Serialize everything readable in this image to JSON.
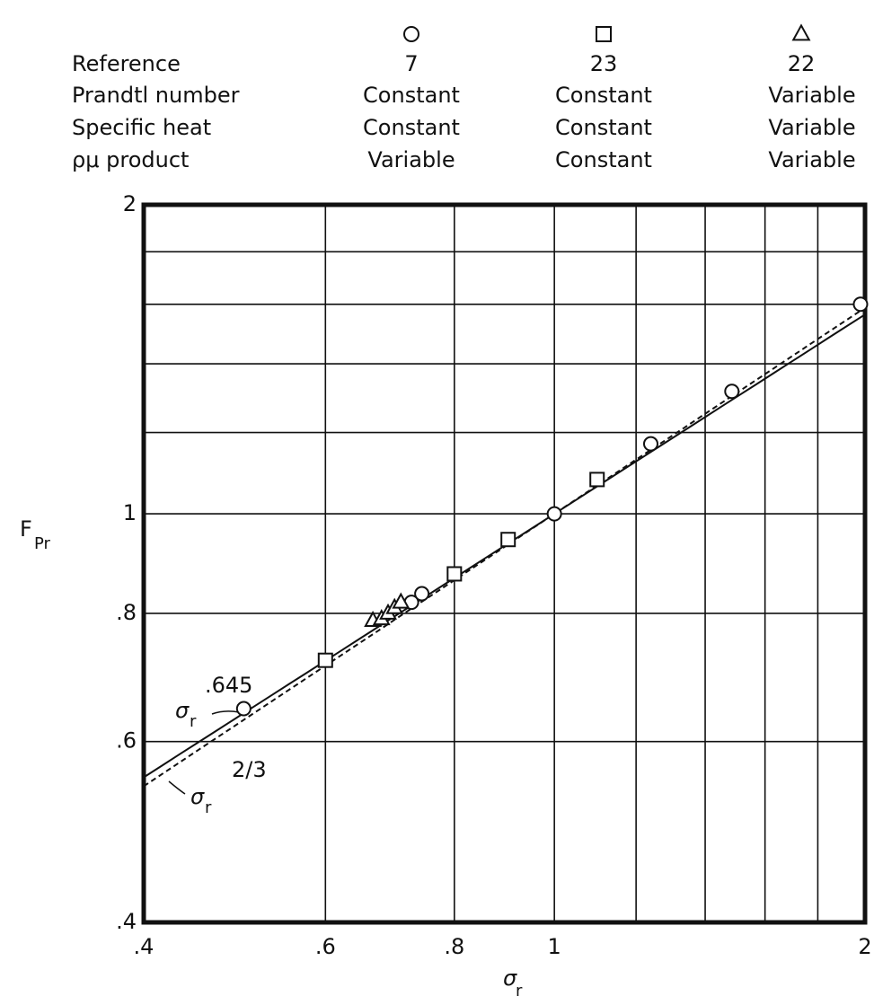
{
  "chart_data": {
    "type": "scatter",
    "legend_rows": [
      "Reference",
      "Prandtl number",
      "Specific heat",
      "ρμ product"
    ],
    "series": [
      {
        "name": "7",
        "marker": "circle",
        "attributes": [
          "Constant",
          "Constant",
          "Variable"
        ],
        "x": [
          0.5,
          0.727,
          0.744,
          1.0,
          1.24,
          1.486,
          1.98
        ],
        "values": [
          0.646,
          0.82,
          0.836,
          1.0,
          1.17,
          1.316,
          1.6
        ]
      },
      {
        "name": "23",
        "marker": "square",
        "attributes": [
          "Constant",
          "Constant",
          "Constant"
        ],
        "x": [
          0.6,
          0.8,
          0.902,
          1.1
        ],
        "values": [
          0.72,
          0.874,
          0.944,
          1.08
        ]
      },
      {
        "name": "22",
        "marker": "triangle",
        "attributes": [
          "Variable",
          "Variable",
          "Variable"
        ],
        "x": [
          0.667,
          0.68,
          0.69,
          0.7,
          0.71
        ],
        "values": [
          0.787,
          0.79,
          0.8,
          0.81,
          0.82
        ]
      }
    ],
    "curves": [
      {
        "exponent": 0.645,
        "style": "solid",
        "symbol": "σ",
        "sub": "r",
        "label": ".645"
      },
      {
        "exponent": 0.6667,
        "style": "dashed",
        "symbol": "σ",
        "sub": "r",
        "label": "2/3"
      }
    ],
    "xlabel": {
      "main": "σ",
      "sub": "r"
    },
    "ylabel": {
      "main": "F",
      "sub": "Pr"
    },
    "log_x": true,
    "log_y": true,
    "xlim": [
      0.4,
      2
    ],
    "ylim": [
      0.4,
      2
    ],
    "xticks": [
      {
        "value": 0.4,
        "label": ".4"
      },
      {
        "value": 0.6,
        "label": ".6"
      },
      {
        "value": 0.8,
        "label": ".8"
      },
      1,
      2
    ],
    "yticks": [
      {
        "value": 0.4,
        "label": ".4"
      },
      {
        "value": 0.6,
        "label": ".6"
      },
      {
        "value": 0.8,
        "label": ".8"
      },
      1,
      2
    ],
    "xminor": [
      1.2,
      1.4,
      1.6,
      1.8
    ],
    "yminor": [
      1.2,
      1.4,
      1.6,
      1.8
    ],
    "grid": true
  }
}
